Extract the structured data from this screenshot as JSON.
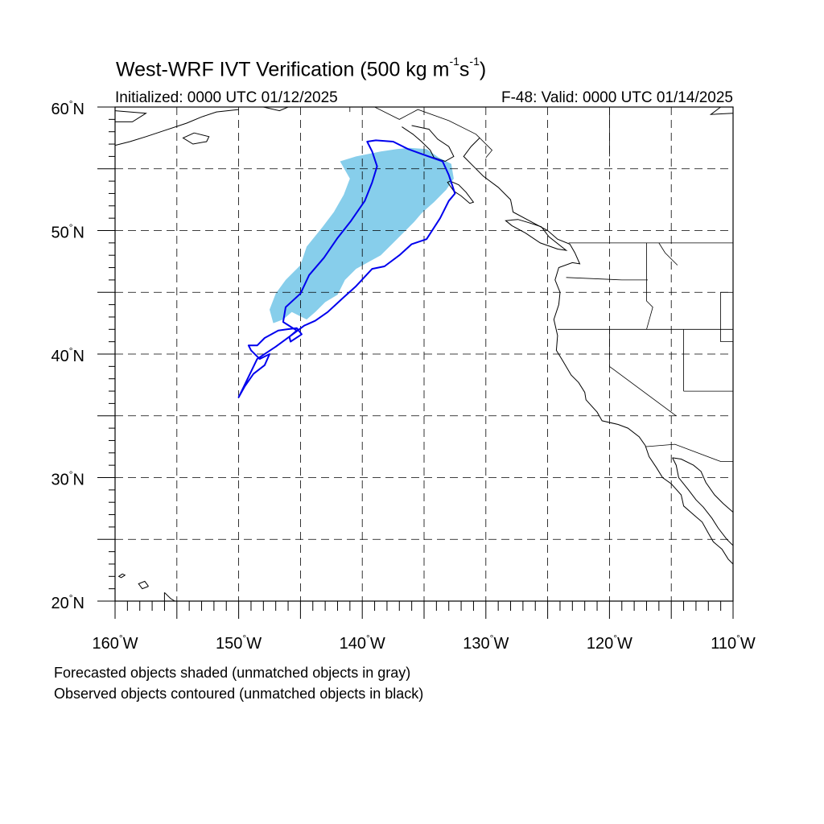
{
  "map": {
    "title_main": "West-WRF IVT Verification (500 kg m",
    "title_exp1": "-1",
    "title_mid": "s",
    "title_exp2": "-1",
    "title_end": ")",
    "initialized": "Initialized: 0000 UTC 01/12/2025",
    "valid": "F-48: Valid: 0000 UTC 01/14/2025",
    "lat_range": [
      20,
      60
    ],
    "lon_range": [
      -160,
      -110
    ],
    "lat_labels": [
      {
        "value": 60,
        "num": "60",
        "hem": "N"
      },
      {
        "value": 50,
        "num": "50",
        "hem": "N"
      },
      {
        "value": 40,
        "num": "40",
        "hem": "N"
      },
      {
        "value": 30,
        "num": "30",
        "hem": "N"
      },
      {
        "value": 20,
        "num": "20",
        "hem": "N"
      }
    ],
    "lon_labels": [
      {
        "value": -160,
        "num": "160",
        "hem": "W"
      },
      {
        "value": -150,
        "num": "150",
        "hem": "W"
      },
      {
        "value": -140,
        "num": "140",
        "hem": "W"
      },
      {
        "value": -130,
        "num": "130",
        "hem": "W"
      },
      {
        "value": -120,
        "num": "120",
        "hem": "W"
      },
      {
        "value": -110,
        "num": "110",
        "hem": "W"
      }
    ],
    "gridlines_deg": 5,
    "colors": {
      "forecast_fill": "#87ceeb",
      "observed_contour": "#0000ee",
      "coast": "#000000",
      "grid": "#000000"
    },
    "forecast_object": [
      [
        -136.2,
        56.7
      ],
      [
        -134.8,
        56.6
      ],
      [
        -133.8,
        55.9
      ],
      [
        -132.8,
        55.4
      ],
      [
        -132.6,
        54.2
      ],
      [
        -133.2,
        53.3
      ],
      [
        -134.2,
        52.3
      ],
      [
        -135.2,
        51.4
      ],
      [
        -135.8,
        50.7
      ],
      [
        -137.0,
        49.5
      ],
      [
        -138.5,
        48.0
      ],
      [
        -140.5,
        46.9
      ],
      [
        -141.4,
        46.0
      ],
      [
        -142.0,
        44.8
      ],
      [
        -143.0,
        44.2
      ],
      [
        -143.8,
        43.4
      ],
      [
        -144.5,
        42.8
      ],
      [
        -145.7,
        43.4
      ],
      [
        -146.4,
        42.8
      ],
      [
        -147.2,
        42.5
      ],
      [
        -147.5,
        43.6
      ],
      [
        -147.0,
        44.9
      ],
      [
        -146.2,
        46.0
      ],
      [
        -145.0,
        47.2
      ],
      [
        -144.5,
        48.7
      ],
      [
        -143.2,
        50.3
      ],
      [
        -142.3,
        51.5
      ],
      [
        -141.5,
        52.9
      ],
      [
        -141.0,
        54.2
      ],
      [
        -141.8,
        55.6
      ],
      [
        -140.5,
        56.0
      ],
      [
        -138.5,
        56.4
      ],
      [
        -137.2,
        56.6
      ]
    ],
    "observed_object": [
      [
        -139.6,
        57.2
      ],
      [
        -138.9,
        57.3
      ],
      [
        -137.5,
        57.2
      ],
      [
        -136.3,
        56.6
      ],
      [
        -135.2,
        56.2
      ],
      [
        -133.5,
        55.6
      ],
      [
        -133.0,
        54.5
      ],
      [
        -132.5,
        53.0
      ],
      [
        -133.0,
        52.4
      ],
      [
        -133.7,
        51.0
      ],
      [
        -134.8,
        49.3
      ],
      [
        -136.0,
        48.9
      ],
      [
        -137.0,
        48.0
      ],
      [
        -138.2,
        47.1
      ],
      [
        -139.2,
        46.9
      ],
      [
        -140.5,
        45.5
      ],
      [
        -141.5,
        44.6
      ],
      [
        -142.8,
        43.4
      ],
      [
        -143.8,
        42.7
      ],
      [
        -144.7,
        42.3
      ],
      [
        -145.5,
        41.7
      ],
      [
        -147.0,
        40.6
      ],
      [
        -148.5,
        39.6
      ],
      [
        -150.0,
        36.5
      ],
      [
        -149.5,
        37.4
      ],
      [
        -148.8,
        38.4
      ],
      [
        -147.9,
        39.1
      ],
      [
        -147.5,
        40.0
      ],
      [
        -148.3,
        39.6
      ],
      [
        -149.0,
        40.3
      ],
      [
        -149.2,
        40.7
      ],
      [
        -148.5,
        40.7
      ],
      [
        -147.9,
        41.3
      ],
      [
        -146.8,
        41.9
      ],
      [
        -146.1,
        42.0
      ],
      [
        -145.3,
        42.1
      ],
      [
        -144.9,
        41.6
      ],
      [
        -145.8,
        41.0
      ],
      [
        -145.9,
        41.4
      ],
      [
        -145.3,
        41.9
      ],
      [
        -146.4,
        42.6
      ],
      [
        -146.2,
        43.8
      ],
      [
        -145.0,
        44.9
      ],
      [
        -144.3,
        46.4
      ],
      [
        -143.1,
        47.8
      ],
      [
        -142.0,
        49.4
      ],
      [
        -140.9,
        50.8
      ],
      [
        -139.8,
        52.4
      ],
      [
        -139.2,
        53.9
      ],
      [
        -138.8,
        55.2
      ],
      [
        -139.2,
        56.4
      ]
    ],
    "coastline": [
      [
        [
          -130.5,
          57.5
        ],
        [
          -131.2,
          56.8
        ],
        [
          -131.8,
          56.0
        ],
        [
          -131.0,
          55.2
        ],
        [
          -130.2,
          54.4
        ],
        [
          -129.0,
          53.5
        ],
        [
          -128.0,
          52.5
        ],
        [
          -127.8,
          51.5
        ],
        [
          -126.5,
          50.8
        ],
        [
          -125.0,
          50.0
        ],
        [
          -124.2,
          49.3
        ],
        [
          -123.2,
          48.9
        ],
        [
          -122.8,
          48.2
        ],
        [
          -122.4,
          47.3
        ],
        [
          -123.0,
          47.4
        ],
        [
          -124.1,
          47.0
        ],
        [
          -124.4,
          46.0
        ],
        [
          -124.0,
          45.0
        ],
        [
          -124.1,
          44.0
        ],
        [
          -124.5,
          42.8
        ],
        [
          -124.2,
          41.5
        ],
        [
          -124.3,
          40.3
        ],
        [
          -123.8,
          39.5
        ],
        [
          -123.1,
          38.3
        ],
        [
          -122.5,
          37.7
        ],
        [
          -122.0,
          36.9
        ],
        [
          -121.9,
          36.3
        ],
        [
          -121.0,
          35.3
        ],
        [
          -120.6,
          34.6
        ],
        [
          -119.3,
          34.3
        ],
        [
          -118.5,
          34.0
        ],
        [
          -117.6,
          33.3
        ],
        [
          -117.1,
          32.6
        ],
        [
          -116.8,
          31.7
        ],
        [
          -116.2,
          30.8
        ],
        [
          -115.7,
          30.0
        ],
        [
          -115.0,
          29.5
        ],
        [
          -114.2,
          28.6
        ],
        [
          -114.0,
          27.7
        ],
        [
          -113.2,
          27.0
        ],
        [
          -112.5,
          26.4
        ],
        [
          -112.0,
          25.5
        ],
        [
          -111.6,
          24.8
        ],
        [
          -110.9,
          24.2
        ],
        [
          -110.4,
          23.4
        ],
        [
          -110.0,
          23.0
        ]
      ],
      [
        [
          -114.9,
          31.6
        ],
        [
          -114.6,
          31.0
        ],
        [
          -114.4,
          30.0
        ],
        [
          -113.6,
          29.0
        ],
        [
          -113.0,
          28.2
        ],
        [
          -112.4,
          27.6
        ],
        [
          -111.7,
          26.7
        ],
        [
          -111.2,
          25.9
        ],
        [
          -110.5,
          25.0
        ],
        [
          -110.0,
          24.5
        ]
      ],
      [
        [
          -114.9,
          31.6
        ],
        [
          -114.2,
          31.5
        ],
        [
          -113.2,
          31.0
        ],
        [
          -112.6,
          30.5
        ],
        [
          -112.2,
          29.6
        ],
        [
          -111.5,
          28.6
        ],
        [
          -110.8,
          27.9
        ],
        [
          -110.0,
          27.2
        ]
      ],
      [
        [
          -150.0,
          59.8
        ],
        [
          -151.8,
          59.6
        ],
        [
          -153.0,
          59.2
        ],
        [
          -154.2,
          58.7
        ],
        [
          -156.0,
          58.1
        ],
        [
          -157.5,
          57.6
        ],
        [
          -158.8,
          57.2
        ],
        [
          -160.0,
          56.9
        ]
      ],
      [
        [
          -160.0,
          58.8
        ],
        [
          -158.6,
          58.8
        ],
        [
          -157.8,
          59.3
        ],
        [
          -157.5,
          59.5
        ],
        [
          -158.8,
          59.6
        ],
        [
          -160.0,
          59.7
        ]
      ],
      [
        [
          -148.0,
          60.0
        ],
        [
          -146.7,
          59.7
        ],
        [
          -146.0,
          60.0
        ]
      ],
      [
        [
          -144.5,
          60.0
        ],
        [
          -142.0,
          60.0
        ]
      ],
      [
        [
          -111.0,
          60.0
        ],
        [
          -111.8,
          59.4
        ],
        [
          -110.0,
          59.5
        ]
      ],
      [
        [
          -136.8,
          58.4
        ],
        [
          -135.9,
          57.8
        ],
        [
          -135.2,
          57.2
        ],
        [
          -134.5,
          56.5
        ],
        [
          -134.2,
          55.9
        ],
        [
          -133.3,
          55.6
        ],
        [
          -132.6,
          56.0
        ],
        [
          -133.0,
          56.8
        ],
        [
          -133.9,
          57.4
        ],
        [
          -134.6,
          58.2
        ],
        [
          -136.0,
          58.5
        ]
      ],
      [
        [
          -132.9,
          54.0
        ],
        [
          -132.2,
          53.7
        ],
        [
          -131.6,
          53.1
        ],
        [
          -131.0,
          52.3
        ],
        [
          -131.3,
          52.2
        ],
        [
          -132.0,
          52.8
        ],
        [
          -132.6,
          53.2
        ],
        [
          -133.1,
          53.9
        ],
        [
          -132.9,
          54.0
        ]
      ],
      [
        [
          -125.5,
          50.3
        ],
        [
          -124.9,
          49.5
        ],
        [
          -123.5,
          48.4
        ],
        [
          -124.2,
          48.5
        ],
        [
          -125.6,
          49.0
        ],
        [
          -126.8,
          49.8
        ],
        [
          -127.9,
          50.4
        ],
        [
          -128.4,
          50.8
        ],
        [
          -127.4,
          50.9
        ],
        [
          -126.4,
          50.6
        ],
        [
          -125.5,
          50.3
        ]
      ],
      [
        [
          -156.0,
          20.7
        ],
        [
          -155.5,
          20.2
        ],
        [
          -155.0,
          19.9
        ],
        [
          -155.6,
          19.4
        ],
        [
          -156.0,
          19.8
        ],
        [
          -156.0,
          20.7
        ]
      ],
      [
        [
          -157.3,
          21.2
        ],
        [
          -157.8,
          21.0
        ],
        [
          -158.1,
          21.4
        ],
        [
          -157.6,
          21.6
        ],
        [
          -157.3,
          21.2
        ]
      ],
      [
        [
          -159.4,
          22.2
        ],
        [
          -159.7,
          22.0
        ],
        [
          -159.5,
          21.9
        ],
        [
          -159.2,
          22.1
        ],
        [
          -159.4,
          22.2
        ]
      ],
      [
        [
          -153.6,
          57.9
        ],
        [
          -152.4,
          57.6
        ],
        [
          -152.6,
          57.2
        ],
        [
          -153.7,
          57.0
        ],
        [
          -154.5,
          57.5
        ],
        [
          -153.6,
          57.9
        ]
      ]
    ],
    "borders": [
      [
        [
          -123.3,
          49.0
        ],
        [
          -110.0,
          49.0
        ]
      ],
      [
        [
          -141.0,
          60.0
        ],
        [
          -141.0,
          59.6
        ]
      ],
      [
        [
          -124.2,
          42.0
        ],
        [
          -110.0,
          42.0
        ]
      ],
      [
        [
          -123.5,
          46.2
        ],
        [
          -119.0,
          46.0
        ],
        [
          -116.9,
          46.0
        ]
      ],
      [
        [
          -117.0,
          49.0
        ],
        [
          -117.0,
          44.3
        ],
        [
          -116.5,
          43.8
        ],
        [
          -117.0,
          42.0
        ]
      ],
      [
        [
          -120.0,
          42.0
        ],
        [
          -120.0,
          39.0
        ],
        [
          -114.6,
          35.0
        ]
      ],
      [
        [
          -114.0,
          42.0
        ],
        [
          -114.0,
          37.0
        ]
      ],
      [
        [
          -114.0,
          37.0
        ],
        [
          -110.0,
          37.0
        ]
      ],
      [
        [
          -111.0,
          45.0
        ],
        [
          -110.0,
          45.0
        ]
      ],
      [
        [
          -111.0,
          45.0
        ],
        [
          -111.0,
          41.0
        ],
        [
          -110.0,
          41.0
        ]
      ],
      [
        [
          -116.0,
          49.0
        ],
        [
          -115.5,
          48.2
        ],
        [
          -114.5,
          47.2
        ]
      ],
      [
        [
          -117.1,
          32.5
        ],
        [
          -114.7,
          32.7
        ],
        [
          -111.0,
          31.3
        ],
        [
          -110.0,
          31.3
        ]
      ],
      [
        [
          -120.0,
          56.0
        ],
        [
          -120.0,
          60.0
        ]
      ],
      [
        [
          -130.0,
          55.9
        ],
        [
          -129.5,
          56.5
        ],
        [
          -130.8,
          57.8
        ],
        [
          -133.0,
          58.9
        ],
        [
          -135.5,
          59.8
        ],
        [
          -137.0,
          59.0
        ],
        [
          -139.0,
          60.0
        ]
      ]
    ],
    "legend_line1": "Forecasted objects shaded (unmatched objects in gray)",
    "legend_line2": "Observed objects contoured (unmatched objects in black)"
  }
}
